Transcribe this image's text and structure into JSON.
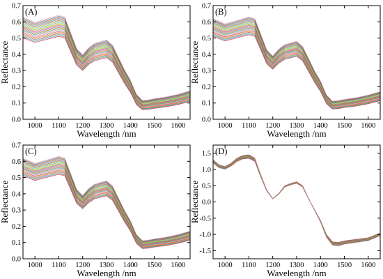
{
  "figure": {
    "panels": [
      "A",
      "B",
      "C",
      "D"
    ]
  },
  "chart_data": [
    {
      "panel_label": "(A)",
      "type": "line",
      "title": "",
      "xlabel": "Wavelength /nm",
      "ylabel": "Reflectance",
      "xlim": [
        950,
        1650
      ],
      "ylim": [
        0.0,
        0.7
      ],
      "xticks": [
        1000,
        1100,
        1200,
        1300,
        1400,
        1500,
        1600
      ],
      "yticks": [
        0.0,
        0.1,
        0.2,
        0.3,
        0.4,
        0.5,
        0.6,
        0.7
      ],
      "grid": false,
      "legend": "none",
      "base_curve": {
        "x": [
          950,
          1000,
          1050,
          1100,
          1125,
          1150,
          1175,
          1200,
          1225,
          1250,
          1275,
          1300,
          1325,
          1350,
          1375,
          1400,
          1425,
          1450,
          1475,
          1500,
          1550,
          1600,
          1650
        ],
        "y": [
          0.56,
          0.53,
          0.55,
          0.57,
          0.56,
          0.47,
          0.38,
          0.345,
          0.385,
          0.41,
          0.42,
          0.43,
          0.4,
          0.33,
          0.26,
          0.2,
          0.12,
          0.085,
          0.088,
          0.095,
          0.105,
          0.12,
          0.14
        ]
      },
      "spread": [
        -0.06,
        0.07
      ],
      "n_curves": 22
    },
    {
      "panel_label": "(B)",
      "type": "line",
      "title": "",
      "xlabel": "Wavelength /nm",
      "ylabel": "Reflectance",
      "xlim": [
        950,
        1650
      ],
      "ylim": [
        0.0,
        0.7
      ],
      "xticks": [
        1000,
        1100,
        1200,
        1300,
        1400,
        1500,
        1600
      ],
      "yticks": [
        0.0,
        0.1,
        0.2,
        0.3,
        0.4,
        0.5,
        0.6,
        0.7
      ],
      "grid": false,
      "legend": "none",
      "base_curve": {
        "x": [
          950,
          1000,
          1050,
          1100,
          1125,
          1150,
          1175,
          1200,
          1225,
          1250,
          1275,
          1300,
          1325,
          1350,
          1375,
          1400,
          1425,
          1450,
          1475,
          1500,
          1550,
          1600,
          1650
        ],
        "y": [
          0.56,
          0.53,
          0.55,
          0.57,
          0.56,
          0.47,
          0.38,
          0.345,
          0.385,
          0.41,
          0.42,
          0.43,
          0.4,
          0.33,
          0.26,
          0.2,
          0.12,
          0.085,
          0.088,
          0.095,
          0.105,
          0.12,
          0.14
        ]
      },
      "spread": [
        -0.05,
        0.06
      ],
      "n_curves": 22
    },
    {
      "panel_label": "(C)",
      "type": "line",
      "title": "",
      "xlabel": "Wavelength /nm",
      "ylabel": "Reflectance",
      "xlim": [
        950,
        1650
      ],
      "ylim": [
        0.0,
        0.7
      ],
      "xticks": [
        1000,
        1100,
        1200,
        1300,
        1400,
        1500,
        1600
      ],
      "yticks": [
        0.0,
        0.1,
        0.2,
        0.3,
        0.4,
        0.5,
        0.6,
        0.7
      ],
      "grid": false,
      "legend": "none",
      "base_curve": {
        "x": [
          950,
          1000,
          1050,
          1100,
          1125,
          1150,
          1175,
          1200,
          1225,
          1250,
          1275,
          1300,
          1325,
          1350,
          1375,
          1400,
          1425,
          1450,
          1475,
          1500,
          1550,
          1600,
          1650
        ],
        "y": [
          0.56,
          0.53,
          0.55,
          0.57,
          0.56,
          0.47,
          0.38,
          0.345,
          0.385,
          0.41,
          0.42,
          0.43,
          0.4,
          0.33,
          0.26,
          0.2,
          0.12,
          0.085,
          0.088,
          0.095,
          0.105,
          0.12,
          0.14
        ]
      },
      "spread": [
        -0.05,
        0.06
      ],
      "n_curves": 22
    },
    {
      "panel_label": "(D)",
      "type": "line",
      "title": "",
      "xlabel": "Wavelength /nm",
      "ylabel": "Reflectance",
      "xlim": [
        950,
        1650
      ],
      "ylim": [
        -1.75,
        1.75
      ],
      "xticks": [
        1000,
        1100,
        1200,
        1300,
        1400,
        1500,
        1600
      ],
      "yticks": [
        -1.5,
        -1.0,
        -0.5,
        0.0,
        0.5,
        1.0,
        1.5
      ],
      "ytick_labels": [
        "-1.5",
        "-1.0",
        "-0.5",
        "0.0",
        "0.5",
        "1.0",
        "1.5"
      ],
      "grid": false,
      "legend": "none",
      "base_curve": {
        "x": [
          950,
          975,
          1000,
          1025,
          1050,
          1075,
          1100,
          1125,
          1150,
          1175,
          1200,
          1225,
          1250,
          1275,
          1300,
          1325,
          1350,
          1375,
          1400,
          1425,
          1450,
          1475,
          1500,
          1550,
          1600,
          1650
        ],
        "y": [
          1.25,
          1.1,
          1.05,
          1.15,
          1.3,
          1.38,
          1.4,
          1.3,
          0.8,
          0.35,
          0.1,
          0.25,
          0.48,
          0.55,
          0.6,
          0.48,
          0.1,
          -0.25,
          -0.6,
          -1.05,
          -1.28,
          -1.3,
          -1.25,
          -1.2,
          -1.15,
          -1.0
        ]
      },
      "spread": [
        -0.04,
        0.04
      ],
      "n_curves": 22
    }
  ]
}
